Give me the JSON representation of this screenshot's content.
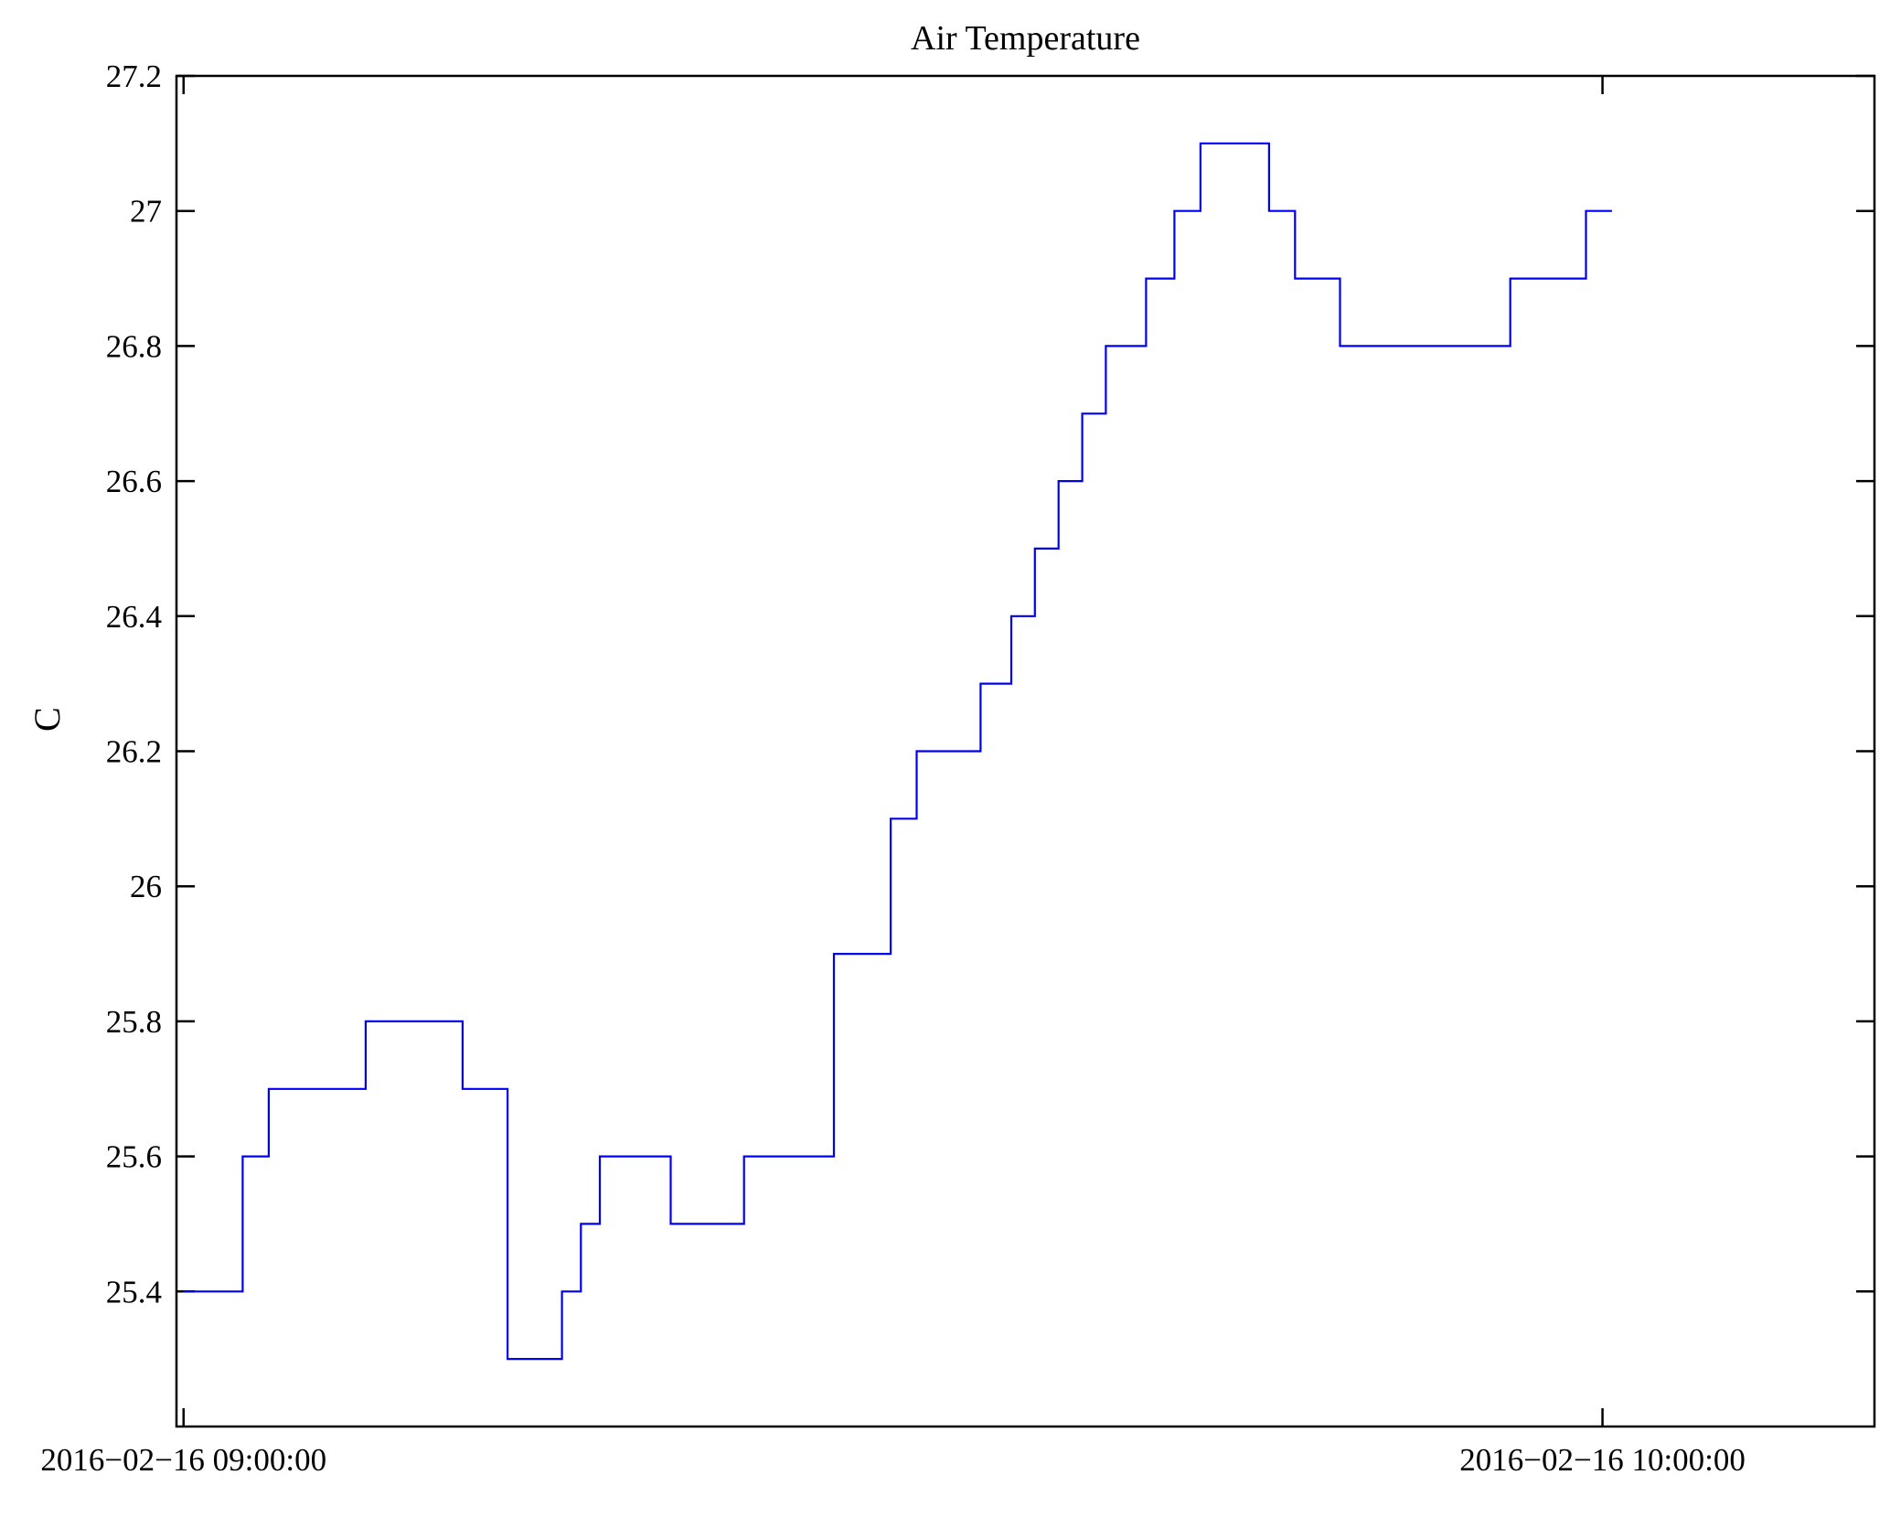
{
  "page": {
    "background": "#ffffff"
  },
  "chart_data": {
    "type": "line",
    "step_mode": "post",
    "title": "Air Temperature",
    "ylabel": "C",
    "xlabel": "",
    "legend": "none",
    "grid": false,
    "line_color": "#0000f0",
    "axis_color": "#000000",
    "x_units": "minutes after first x tick",
    "xlim": [
      -0.3,
      71.5
    ],
    "ylim": [
      25.2,
      27.2
    ],
    "xticks": [
      {
        "v": 0,
        "label": "2016−02−16 09:00:00"
      },
      {
        "v": 60,
        "label": "2016−02−16 10:00:00"
      }
    ],
    "yticks": [
      {
        "v": 25.4,
        "label": "25.4"
      },
      {
        "v": 25.6,
        "label": "25.6"
      },
      {
        "v": 25.8,
        "label": "25.8"
      },
      {
        "v": 26.0,
        "label": "26"
      },
      {
        "v": 26.2,
        "label": "26.2"
      },
      {
        "v": 26.4,
        "label": "26.4"
      },
      {
        "v": 26.6,
        "label": "26.6"
      },
      {
        "v": 26.8,
        "label": "26.8"
      },
      {
        "v": 27.0,
        "label": "27"
      },
      {
        "v": 27.2,
        "label": "27.2"
      }
    ],
    "series": [
      {
        "name": "air-temperature",
        "color": "#0000f0",
        "steps": [
          [
            0.0,
            25.4
          ],
          [
            2.5,
            25.6
          ],
          [
            3.6,
            25.7
          ],
          [
            7.7,
            25.8
          ],
          [
            11.8,
            25.7
          ],
          [
            13.7,
            25.3
          ],
          [
            16.0,
            25.4
          ],
          [
            16.8,
            25.5
          ],
          [
            17.6,
            25.6
          ],
          [
            20.6,
            25.5
          ],
          [
            23.7,
            25.6
          ],
          [
            27.5,
            25.9
          ],
          [
            29.9,
            26.1
          ],
          [
            31.0,
            26.2
          ],
          [
            33.7,
            26.3
          ],
          [
            35.0,
            26.4
          ],
          [
            36.0,
            26.5
          ],
          [
            37.0,
            26.6
          ],
          [
            38.0,
            26.7
          ],
          [
            39.0,
            26.8
          ],
          [
            40.7,
            26.9
          ],
          [
            41.9,
            27.0
          ],
          [
            43.0,
            27.1
          ],
          [
            45.9,
            27.0
          ],
          [
            47.0,
            26.9
          ],
          [
            48.9,
            26.8
          ],
          [
            56.1,
            26.9
          ],
          [
            59.3,
            27.0
          ]
        ],
        "end_x": 60.4
      }
    ]
  }
}
